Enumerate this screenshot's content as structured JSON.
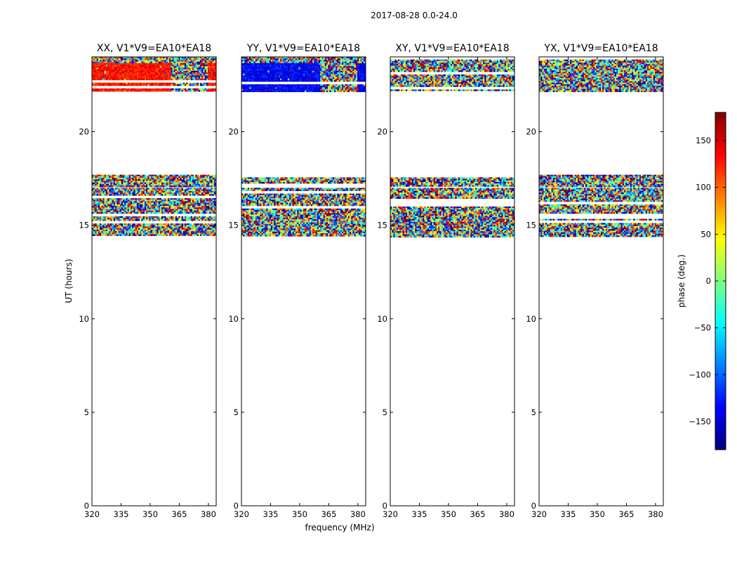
{
  "suptitle": "2017-08-28 0.0-24.0",
  "chart_data": {
    "type": "heatmap",
    "xlabel": "frequency (MHz)",
    "ylabel": "UT (hours)",
    "xlim": [
      320,
      384
    ],
    "ylim": [
      0,
      24
    ],
    "xticks": [
      320,
      335,
      350,
      365,
      380
    ],
    "yticks": [
      0,
      5,
      10,
      15,
      20
    ],
    "panels": [
      {
        "title": "XX, V1*V9=EA10*EA18",
        "pol": "XX"
      },
      {
        "title": "YY, V1*V9=EA10*EA18",
        "pol": "YY"
      },
      {
        "title": "XY, V1*V9=EA10*EA18",
        "pol": "XY"
      },
      {
        "title": "YX, V1*V9=EA10*EA18",
        "pol": "YX"
      }
    ],
    "data_time_bands_hours": [
      {
        "start": 22.2,
        "end": 24.0
      },
      {
        "start": 17.1,
        "end": 17.7
      },
      {
        "start": 14.4,
        "end": 17.0
      }
    ],
    "colorbar": {
      "label": "phase (deg.)",
      "range": [
        -180,
        180
      ],
      "ticks": [
        150,
        100,
        50,
        0,
        -50,
        -100,
        -150
      ],
      "tick_labels": [
        "150",
        "100",
        "50",
        "0",
        "−50",
        "−100",
        "−150"
      ],
      "colormap": "jet"
    }
  }
}
